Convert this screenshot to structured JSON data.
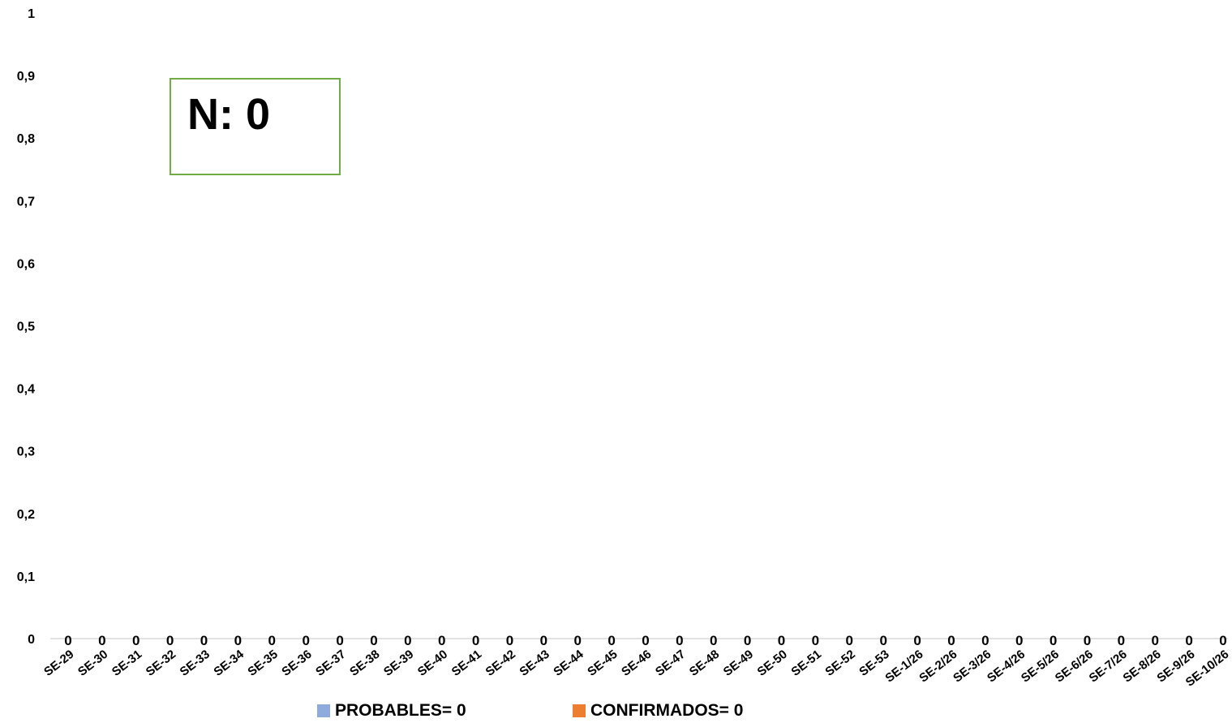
{
  "chart_data": {
    "type": "bar",
    "categories": [
      "SE-29",
      "SE-30",
      "SE-31",
      "SE-32",
      "SE-33",
      "SE-34",
      "SE-35",
      "SE-36",
      "SE-37",
      "SE-38",
      "SE-39",
      "SE-40",
      "SE-41",
      "SE-42",
      "SE-43",
      "SE-44",
      "SE-45",
      "SE-46",
      "SE-47",
      "SE-48",
      "SE-49",
      "SE-50",
      "SE-51",
      "SE-52",
      "SE-53",
      "SE-1/26",
      "SE-2/26",
      "SE-3/26",
      "SE-4/26",
      "SE-5/26",
      "SE-6/26",
      "SE-7/26",
      "SE-8/26",
      "SE-9/26",
      "SE-10/26"
    ],
    "series": [
      {
        "name": "PROBABLES= 0",
        "color": "#8faadc",
        "values": [
          0,
          0,
          0,
          0,
          0,
          0,
          0,
          0,
          0,
          0,
          0,
          0,
          0,
          0,
          0,
          0,
          0,
          0,
          0,
          0,
          0,
          0,
          0,
          0,
          0,
          0,
          0,
          0,
          0,
          0,
          0,
          0,
          0,
          0,
          0
        ]
      },
      {
        "name": "CONFIRMADOS= 0",
        "color": "#ed7d31",
        "values": [
          0,
          0,
          0,
          0,
          0,
          0,
          0,
          0,
          0,
          0,
          0,
          0,
          0,
          0,
          0,
          0,
          0,
          0,
          0,
          0,
          0,
          0,
          0,
          0,
          0,
          0,
          0,
          0,
          0,
          0,
          0,
          0,
          0,
          0,
          0
        ]
      }
    ],
    "data_labels": [
      "0",
      "0",
      "0",
      "0",
      "0",
      "0",
      "0",
      "0",
      "0",
      "0",
      "0",
      "0",
      "0",
      "0",
      "0",
      "0",
      "0",
      "0",
      "0",
      "0",
      "0",
      "0",
      "0",
      "0",
      "0",
      "0",
      "0",
      "0",
      "0",
      "0",
      "0",
      "0",
      "0",
      "0",
      "0"
    ],
    "y_ticks": [
      "0",
      "0,1",
      "0,2",
      "0,3",
      "0,4",
      "0,5",
      "0,6",
      "0,7",
      "0,8",
      "0,9",
      "1"
    ],
    "ylim": [
      0,
      1
    ],
    "grid": false,
    "legend_position": "bottom",
    "annotation": "N: 0",
    "title": "",
    "xlabel": "",
    "ylabel": ""
  },
  "colors": {
    "axis_line": "#d9d9d9",
    "annotation_border": "#70ad47"
  }
}
